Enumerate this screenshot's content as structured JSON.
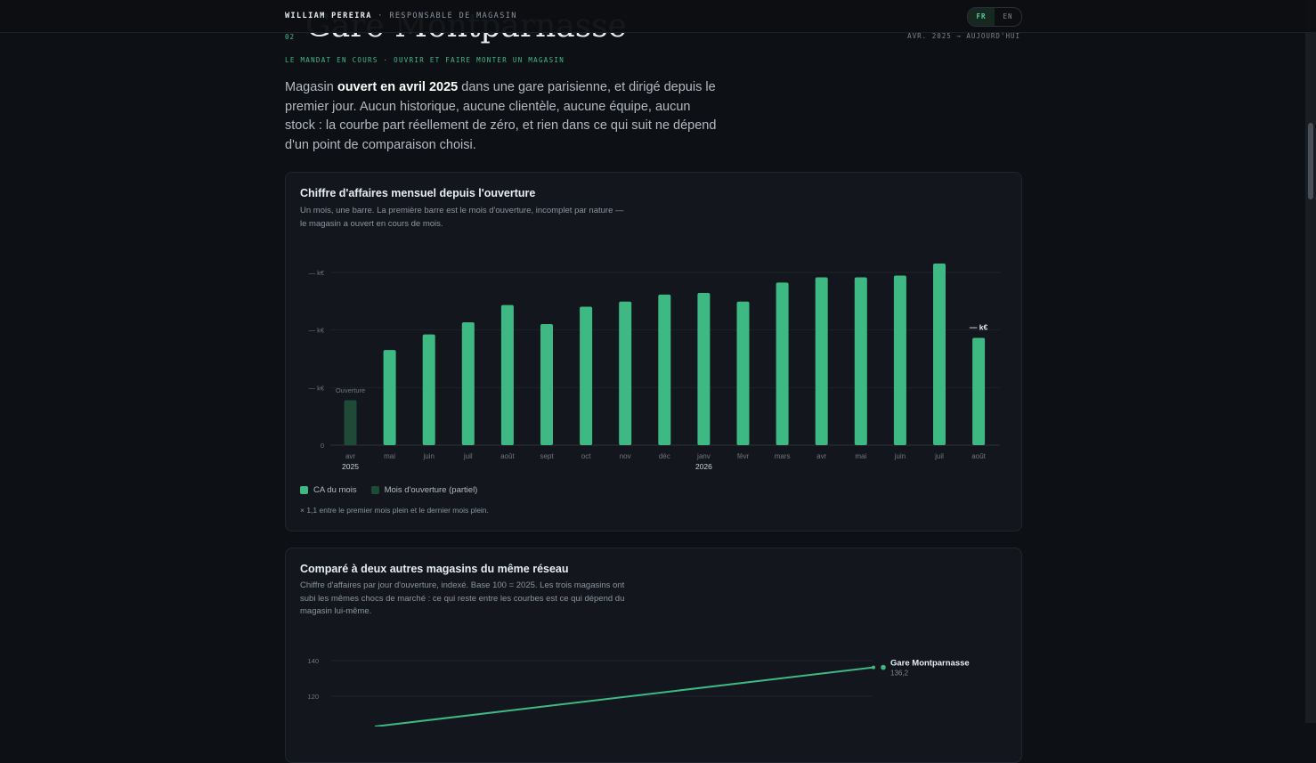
{
  "header": {
    "name": "WILLIAM PEREIRA",
    "separator": "·",
    "role": "RESPONSABLE DE MAGASIN",
    "languages": [
      {
        "label": "FR",
        "active": true
      },
      {
        "label": "EN",
        "active": false
      }
    ]
  },
  "section": {
    "number": "02",
    "title": "Gare Montparnasse",
    "period": "AVR. 2025 → AUJOURD'HUI",
    "subtitle": "LE MANDAT EN COURS · OUVRIR ET FAIRE MONTER UN MAGASIN",
    "intro": {
      "before": "Magasin ",
      "bold": "ouvert en avril 2025",
      "after": " dans une gare parisienne, et dirigé depuis le premier jour. Aucun historique, aucune clientèle, aucune équipe, aucun stock : la courbe part réellement de zéro, et rien dans ce qui suit ne dépend d'un point de comparaison choisi."
    }
  },
  "card_revenue": {
    "title": "Chiffre d'affaires mensuel depuis l'ouverture",
    "description": "Un mois, une barre. La première barre est le mois d'ouverture, incomplet par nature — le magasin a ouvert en cours de mois.",
    "legend": [
      {
        "label": "CA du mois",
        "color": "#3fb984"
      },
      {
        "label": "Mois d'ouverture (partiel)",
        "color": "#1f4a38"
      }
    ],
    "footnote": "× 1,1 entre le premier mois plein et le dernier mois plein."
  },
  "card_compare": {
    "title": "Comparé à deux autres magasins du même réseau",
    "description": "Chiffre d'affaires par jour d'ouverture, indexé. Base 100 = 2025. Les trois magasins ont subi les mêmes chocs de marché : ce qui reste entre les courbes est ce qui dépend du magasin lui-même."
  },
  "chart_data": [
    {
      "type": "bar",
      "categories": [
        "avr",
        "mai",
        "juin",
        "juil",
        "août",
        "sept",
        "oct",
        "nov",
        "déc",
        "janv",
        "févr",
        "mars",
        "avr",
        "mai",
        "juin",
        "juil",
        "août"
      ],
      "year_labels": [
        {
          "index": 0,
          "label": "2025"
        },
        {
          "index": 9,
          "label": "2026"
        }
      ],
      "values": [
        0.26,
        0.55,
        0.64,
        0.71,
        0.81,
        0.7,
        0.8,
        0.83,
        0.87,
        0.88,
        0.83,
        0.94,
        0.97,
        0.97,
        0.98,
        1.05,
        0.62
      ],
      "partial_index": 0,
      "ytick_labels": [
        "0",
        "— k€",
        "— k€",
        "— k€"
      ],
      "ylim": [
        0,
        1.06
      ],
      "annotations": [
        {
          "index": 0,
          "text": "Ouverture"
        },
        {
          "index": 16,
          "text": "— k€"
        }
      ],
      "colors": {
        "bar": "#3fb984",
        "partial": "#1f4a38"
      }
    },
    {
      "type": "line",
      "yticks": [
        120,
        140
      ],
      "series": [
        {
          "name": "Gare Montparnasse",
          "end_label": "136,2",
          "color": "#3fb984",
          "y_end": 136.2
        }
      ]
    }
  ]
}
